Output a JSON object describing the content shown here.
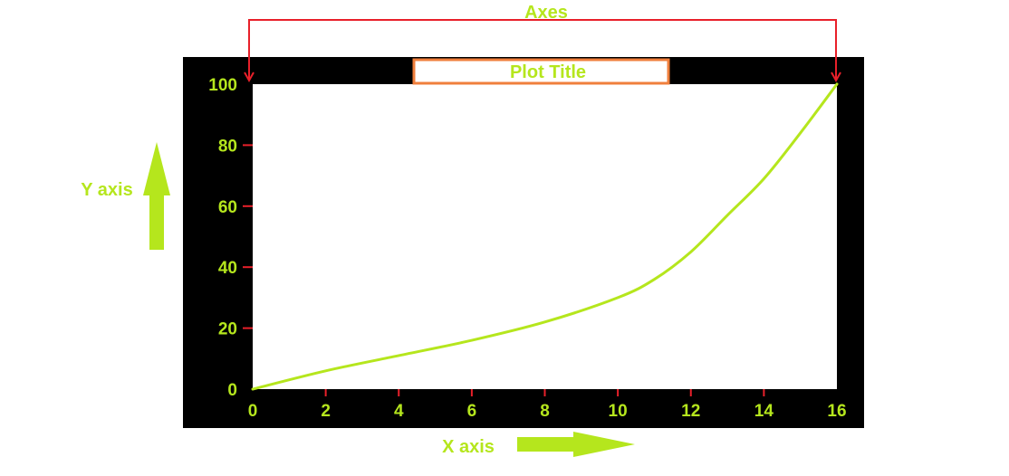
{
  "annotations": {
    "axes_label": "Axes",
    "y_axis_label": "Y axis",
    "x_axis_label": "X axis",
    "plot_title": "Plot Title"
  },
  "colors": {
    "frame": "#000000",
    "plot_area": "#ffffff",
    "label": "#b5e61d",
    "tick_mark": "#e8202a",
    "bracket": "#e8202a",
    "title_box_border": "#f07f3c",
    "curve": "#b5e61d",
    "arrow": "#b5e61d"
  },
  "chart_data": {
    "type": "line",
    "title": "Plot Title",
    "xlim": [
      0,
      16
    ],
    "ylim": [
      0,
      100
    ],
    "x_ticks": [
      {
        "value": 0,
        "label": "0"
      },
      {
        "value": 2,
        "label": "2"
      },
      {
        "value": 4,
        "label": "4"
      },
      {
        "value": 6,
        "label": "6"
      },
      {
        "value": 8,
        "label": "8"
      },
      {
        "value": 10,
        "label": "10"
      },
      {
        "value": 12,
        "label": "12"
      },
      {
        "value": 14,
        "label": "14"
      },
      {
        "value": 16,
        "label": "16"
      }
    ],
    "y_ticks": [
      {
        "value": 0,
        "label": "0"
      },
      {
        "value": 20,
        "label": "20"
      },
      {
        "value": 40,
        "label": "40"
      },
      {
        "value": 60,
        "label": "60"
      },
      {
        "value": 80,
        "label": "80"
      },
      {
        "value": 100,
        "label": "100"
      }
    ],
    "series": [
      {
        "x": [
          0,
          2,
          4,
          6,
          8,
          10,
          11,
          12,
          13,
          14,
          15,
          16
        ],
        "y": [
          0,
          6,
          11,
          16,
          22,
          30,
          36,
          45,
          57,
          69,
          84,
          100
        ]
      }
    ]
  }
}
